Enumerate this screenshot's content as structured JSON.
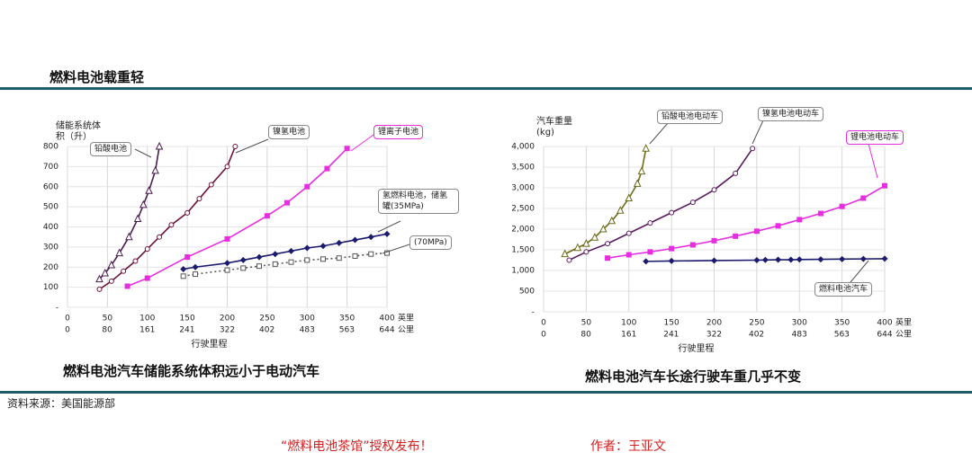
{
  "header": {
    "title": "燃料电池载重轻"
  },
  "chart_data": [
    {
      "type": "line",
      "ylabel_lines": [
        "储能系统体",
        "积（升）"
      ],
      "xlabel": "行驶里程",
      "x_units": [
        "英里",
        "公里"
      ],
      "caption": "燃料电池汽车储能系统体积远小于电动汽车",
      "xlim": [
        0,
        400
      ],
      "xticks": [
        0,
        50,
        100,
        150,
        200,
        250,
        300,
        350,
        400
      ],
      "x2lim": [
        0,
        644
      ],
      "x2ticks": [
        0,
        80,
        161,
        241,
        322,
        402,
        483,
        563,
        644
      ],
      "ylim": [
        0,
        800
      ],
      "yticks": [
        {
          "value": 0,
          "label": "-"
        },
        100,
        200,
        300,
        400,
        500,
        600,
        700,
        800
      ],
      "grid": true,
      "series": [
        {
          "name": "铅酸电池",
          "color": "#4b1b50",
          "marker": "triangle-open",
          "x": [
            40,
            47,
            55,
            65,
            77,
            88,
            95,
            102,
            110,
            115
          ],
          "values": [
            140,
            170,
            210,
            270,
            350,
            440,
            510,
            580,
            680,
            800
          ]
        },
        {
          "name": "镍氢电池",
          "color": "#6b1038",
          "marker": "circle-open",
          "x": [
            40,
            55,
            70,
            85,
            100,
            115,
            130,
            150,
            165,
            180,
            200,
            210
          ],
          "values": [
            90,
            130,
            180,
            230,
            290,
            350,
            410,
            470,
            540,
            610,
            700,
            800
          ]
        },
        {
          "name": "锂离子电池",
          "color": "#e62ee0",
          "marker": "square",
          "x": [
            75,
            100,
            150,
            200,
            250,
            275,
            300,
            325,
            350
          ],
          "values": [
            105,
            145,
            250,
            340,
            455,
            520,
            600,
            690,
            790
          ]
        },
        {
          "name": "氢燃料电池，储氢罐(35MPa)",
          "color": "#1a1a6e",
          "marker": "diamond",
          "x": [
            145,
            160,
            200,
            220,
            240,
            260,
            280,
            300,
            320,
            340,
            360,
            380,
            400
          ],
          "values": [
            190,
            200,
            220,
            235,
            250,
            265,
            280,
            295,
            305,
            320,
            335,
            350,
            365
          ]
        },
        {
          "name": "(70MPa)",
          "color": "#555555",
          "marker": "square-open",
          "line_style": "dotted",
          "x": [
            145,
            160,
            200,
            220,
            240,
            260,
            280,
            300,
            320,
            340,
            360,
            380,
            400
          ],
          "values": [
            155,
            165,
            185,
            195,
            205,
            215,
            225,
            235,
            240,
            245,
            255,
            265,
            270
          ]
        }
      ]
    },
    {
      "type": "line",
      "ylabel_lines": [
        "汽车重量",
        "(kg)"
      ],
      "xlabel": "行驶里程",
      "x_units": [
        "英里",
        "公里"
      ],
      "caption": "燃料电池汽车长途行驶车重几乎不变",
      "xlim": [
        0,
        400
      ],
      "xticks": [
        0,
        50,
        100,
        150,
        200,
        250,
        300,
        350,
        400
      ],
      "x2lim": [
        0,
        644
      ],
      "x2ticks": [
        0,
        80,
        161,
        241,
        322,
        402,
        483,
        563,
        644
      ],
      "ylim": [
        0,
        4000
      ],
      "yticks": [
        {
          "value": 0,
          "label": "-"
        },
        500,
        {
          "value": 1000,
          "label": "1,000"
        },
        {
          "value": 1500,
          "label": "1,500"
        },
        {
          "value": 2000,
          "label": "2,000"
        },
        {
          "value": 2500,
          "label": "2,500"
        },
        {
          "value": 3000,
          "label": "3,000"
        },
        {
          "value": 3500,
          "label": "3,500"
        },
        {
          "value": 4000,
          "label": "4,000"
        }
      ],
      "grid": true,
      "series": [
        {
          "name": "铅酸电池电动车",
          "color": "#6b6b1a",
          "marker": "triangle-open",
          "x": [
            25,
            40,
            50,
            60,
            70,
            80,
            90,
            100,
            110,
            115,
            120
          ],
          "values": [
            1400,
            1550,
            1650,
            1800,
            2000,
            2200,
            2450,
            2750,
            3100,
            3400,
            3950
          ]
        },
        {
          "name": "镍氢电池电动车",
          "color": "#5a1a5e",
          "marker": "circle-open",
          "x": [
            30,
            50,
            75,
            100,
            125,
            150,
            175,
            200,
            225,
            245
          ],
          "values": [
            1250,
            1450,
            1650,
            1900,
            2150,
            2400,
            2650,
            2950,
            3350,
            3950
          ]
        },
        {
          "name": "锂电池电动车",
          "color": "#e62ee0",
          "marker": "square",
          "x": [
            75,
            100,
            125,
            150,
            175,
            200,
            225,
            250,
            275,
            300,
            325,
            350,
            375,
            400
          ],
          "values": [
            1300,
            1380,
            1450,
            1530,
            1620,
            1720,
            1830,
            1950,
            2080,
            2230,
            2380,
            2550,
            2750,
            3050
          ]
        },
        {
          "name": "燃料电池汽车",
          "color": "#1a1a6e",
          "marker": "diamond",
          "x": [
            120,
            150,
            200,
            250,
            260,
            275,
            290,
            300,
            325,
            350,
            375,
            400
          ],
          "values": [
            1220,
            1230,
            1240,
            1250,
            1255,
            1260,
            1260,
            1265,
            1270,
            1275,
            1280,
            1285
          ]
        }
      ]
    }
  ],
  "source": "资料来源：美国能源部",
  "footer": {
    "credit": "“燃料电池茶馆”授权发布！",
    "author": "作者：王亚文"
  }
}
